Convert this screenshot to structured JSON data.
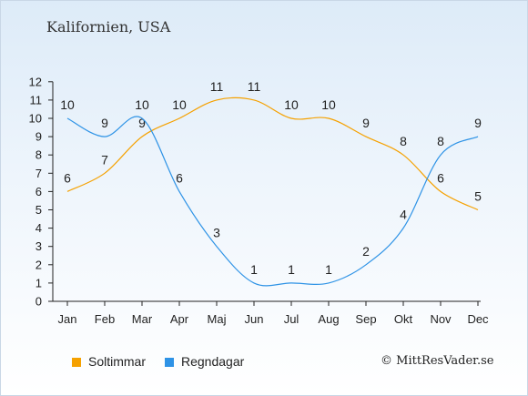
{
  "header": {
    "title": "Kalifornien, USA"
  },
  "footer": {
    "copyright": "© MittResVader.se"
  },
  "chart_data": {
    "type": "line",
    "title": "Kalifornien, USA",
    "categories": [
      "Jan",
      "Feb",
      "Mar",
      "Apr",
      "Maj",
      "Jun",
      "Jul",
      "Aug",
      "Sep",
      "Okt",
      "Nov",
      "Dec"
    ],
    "y_ticks": [
      "0",
      "1",
      "2",
      "3",
      "4",
      "5",
      "6",
      "7",
      "8",
      "9",
      "10",
      "11",
      "12"
    ],
    "ylim": [
      0,
      12
    ],
    "grid": false,
    "legend_position": "bottom-left",
    "series": [
      {
        "name": "Soltimmar",
        "color": "#f5a100",
        "values": [
          6,
          7,
          9,
          10,
          11,
          11,
          10,
          10,
          9,
          8,
          6,
          5
        ]
      },
      {
        "name": "Regndagar",
        "color": "#2e93e6",
        "values": [
          10,
          9,
          10,
          6,
          3,
          1,
          1,
          1,
          2,
          4,
          8,
          9
        ]
      }
    ]
  }
}
